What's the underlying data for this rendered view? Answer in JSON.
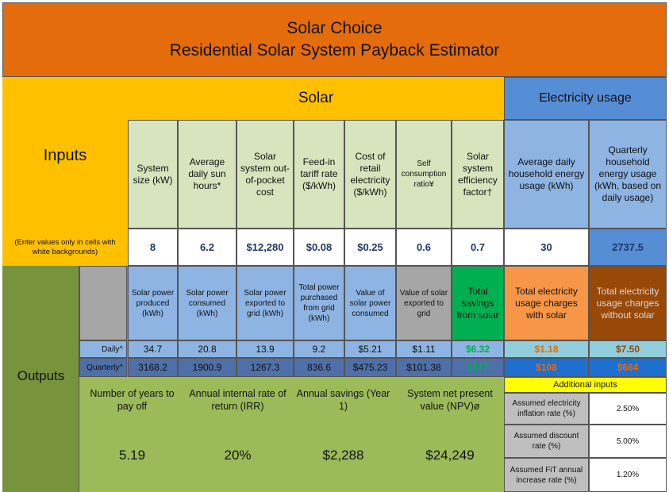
{
  "title": {
    "line1": "Solar Choice",
    "line2": "Residential Solar System Payback Estimator"
  },
  "sections": {
    "solar": "Solar",
    "electricity": "Electricity usage",
    "inputs": "Inputs",
    "outputs": "Outputs",
    "note": "(Enter values only in cells with white backgrounds)"
  },
  "input_headers": [
    "System size (kW)",
    "Average daily sun hours*",
    "Solar system out-of-pocket cost",
    "Feed-in tariff rate ($/kWh)",
    "Cost of retail electricity ($/kWh)",
    "Self consumption ratio¥",
    "Solar system efficiency factor†",
    "Average daily household energy usage (kWh)",
    "Quarterly household energy usage (kWh, based on daily usage)"
  ],
  "input_values": [
    "8",
    "6.2",
    "$12,280",
    "$0.08",
    "$0.25",
    "0.6",
    "0.7",
    "30",
    "2737.5"
  ],
  "output_headers": [
    "Solar power produced (kWh)",
    "Solar power consumed (kWh)",
    "Solar power exported to grid (kWh)",
    "Total power purchased from grid (kWh)",
    "Value of solar power consumed",
    "Value of solar exported to grid",
    "Total savings from solar",
    "Total electricity usage charges with solar",
    "Total electricity usage charges without solar"
  ],
  "row_labels": {
    "daily": "Daily^",
    "quarterly": "Quarterly^"
  },
  "daily": [
    "34.7",
    "20.8",
    "13.9",
    "9.2",
    "$5.21",
    "$1.11",
    "$6.32",
    "$1.18",
    "$7.50"
  ],
  "quarterly": [
    "3168.2",
    "1900.9",
    "1267.3",
    "836.6",
    "$475.23",
    "$101.38",
    "$577",
    "$108",
    "$684"
  ],
  "summary": {
    "labels": [
      "Number of years to pay off",
      "Annual internal rate of return (IRR)",
      "Annual savings (Year 1)",
      "System net present value (NPV)ø"
    ],
    "values": [
      "5.19",
      "20%",
      "$2,288",
      "$24,249"
    ]
  },
  "additional": {
    "title": "Additional inputs",
    "items": [
      {
        "label": "Assumed electricity inflation rate (%)",
        "value": "2.50%"
      },
      {
        "label": "Assumed discount rate (%)",
        "value": "5.00%"
      },
      {
        "label": "Assumed FiT annual increase rate (%)",
        "value": "1.20%"
      }
    ]
  },
  "colors": {
    "title_orange": "#e46c0a",
    "solar_yellow": "#ffc000",
    "electric_blue": "#558ed5",
    "input_green": "#d7e4bd",
    "output_green": "#9bbb59",
    "savings_green": "#00b050"
  }
}
